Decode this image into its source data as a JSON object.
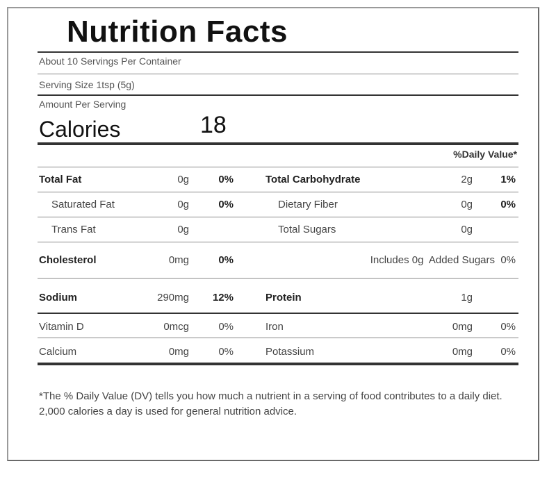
{
  "title": "Nutrition Facts",
  "servings_per_container": "About 10 Servings Per Container",
  "serving_size": "Serving Size 1tsp (5g)",
  "amount_per_serving": "Amount Per Serving",
  "calories": {
    "label": "Calories",
    "value": "18"
  },
  "daily_value_header": "%Daily Value*",
  "left_rows": [
    {
      "name": "Total Fat",
      "amount": "0g",
      "dv": "0%"
    },
    {
      "name": "Saturated Fat",
      "amount": "0g",
      "dv": "0%"
    },
    {
      "name": "Trans Fat",
      "amount": "0g",
      "dv": ""
    },
    {
      "name": "Cholesterol",
      "amount": "0mg",
      "dv": "0%"
    },
    {
      "name": "Sodium",
      "amount": "290mg",
      "dv": "12%"
    },
    {
      "name": "Vitamin D",
      "amount": "0mcg",
      "dv": "0%"
    },
    {
      "name": "Calcium",
      "amount": "0mg",
      "dv": "0%"
    }
  ],
  "right_rows": [
    {
      "name": "Total Carbohydrate",
      "amount": "2g",
      "dv": "1%"
    },
    {
      "name": "Dietary Fiber",
      "amount": "0g",
      "dv": "0%"
    },
    {
      "name": "Total Sugars",
      "amount": "0g",
      "dv": ""
    },
    {
      "name": "Includes 0g  Added Sugars",
      "amount": "",
      "dv": "0%"
    },
    {
      "name": "Protein",
      "amount": "1g",
      "dv": ""
    },
    {
      "name": "Iron",
      "amount": "0mg",
      "dv": "0%"
    },
    {
      "name": "Potassium",
      "amount": "0mg",
      "dv": "0%"
    }
  ],
  "footnote": "*The % Daily Value (DV) tells you how much a nutrient in a serving of food contributes to a daily diet. 2,000 calories a day is used for general nutrition advice."
}
